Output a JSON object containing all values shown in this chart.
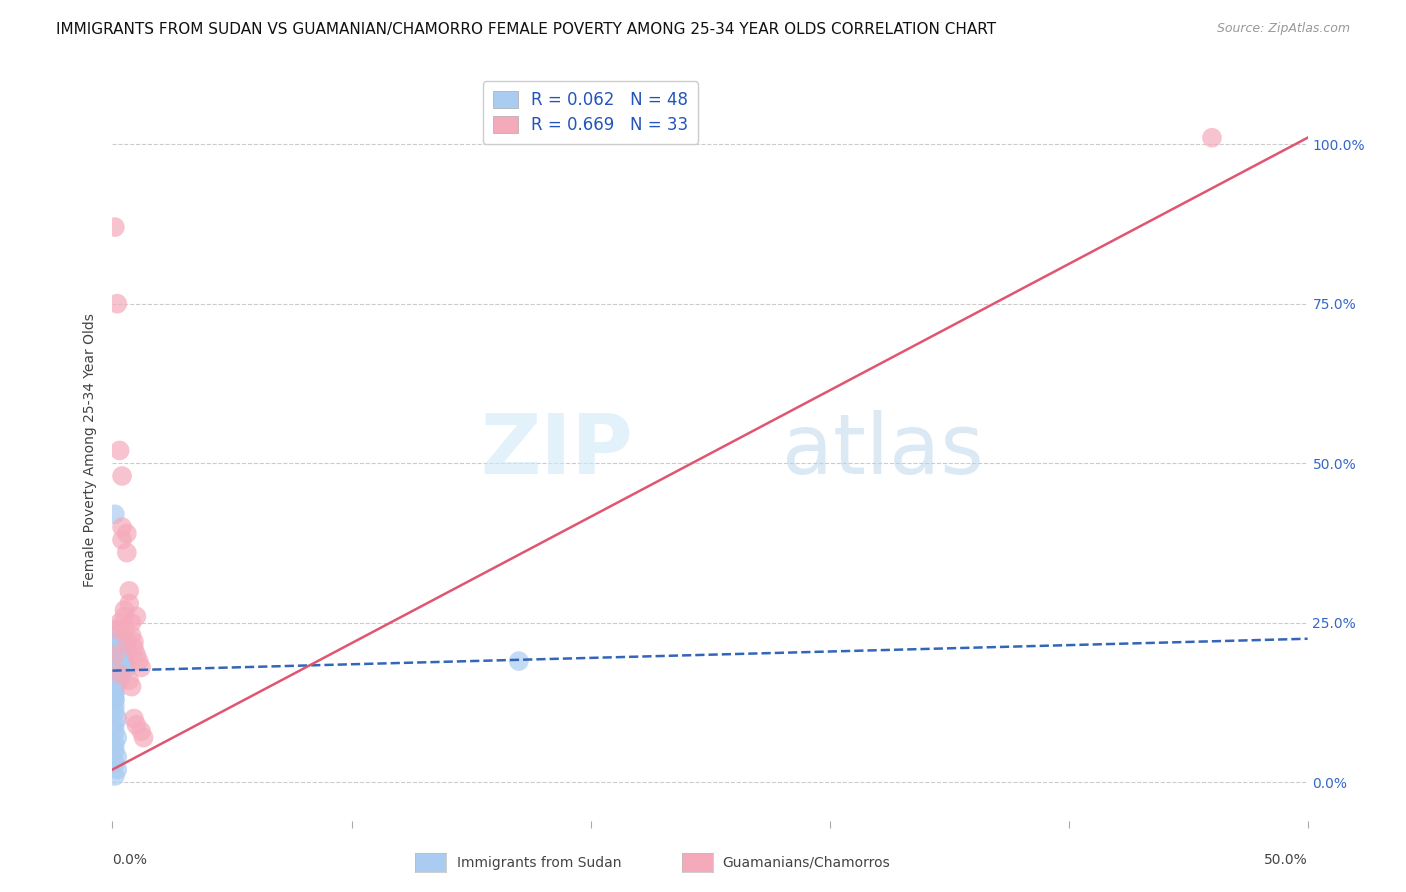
{
  "title": "IMMIGRANTS FROM SUDAN VS GUAMANIAN/CHAMORRO FEMALE POVERTY AMONG 25-34 YEAR OLDS CORRELATION CHART",
  "source": "Source: ZipAtlas.com",
  "ylabel": "Female Poverty Among 25-34 Year Olds",
  "ylabel_right_ticks": [
    "0.0%",
    "25.0%",
    "50.0%",
    "75.0%",
    "100.0%"
  ],
  "ylabel_right_vals": [
    0.0,
    0.25,
    0.5,
    0.75,
    1.0
  ],
  "xmin": 0.0,
  "xmax": 0.5,
  "ymin": -0.06,
  "ymax": 1.1,
  "legend_blue_label": "R = 0.062   N = 48",
  "legend_pink_label": "R = 0.669   N = 33",
  "blue_color": "#aaccf0",
  "pink_color": "#f5aabb",
  "blue_line_color": "#3366bb",
  "pink_line_color": "#e05570",
  "watermark_zip": "ZIP",
  "watermark_atlas": "atlas",
  "grid_color": "#cccccc",
  "title_fontsize": 11,
  "axis_label_fontsize": 10,
  "tick_fontsize": 10,
  "blue_scatter_x": [
    0.001,
    0.001,
    0.002,
    0.002,
    0.003,
    0.003,
    0.004,
    0.004,
    0.005,
    0.006,
    0.001,
    0.001,
    0.002,
    0.002,
    0.003,
    0.003,
    0.004,
    0.005,
    0.001,
    0.001,
    0.001,
    0.001,
    0.002,
    0.002,
    0.003,
    0.003,
    0.001,
    0.001,
    0.002,
    0.001,
    0.001,
    0.002,
    0.001,
    0.001,
    0.002,
    0.001,
    0.001,
    0.002,
    0.001,
    0.001,
    0.001,
    0.002,
    0.001,
    0.002,
    0.001,
    0.17,
    0.001,
    0.001
  ],
  "blue_scatter_y": [
    0.2,
    0.17,
    0.22,
    0.19,
    0.21,
    0.18,
    0.22,
    0.19,
    0.2,
    0.18,
    0.16,
    0.15,
    0.2,
    0.19,
    0.18,
    0.16,
    0.17,
    0.19,
    0.22,
    0.21,
    0.14,
    0.13,
    0.21,
    0.18,
    0.19,
    0.17,
    0.24,
    0.23,
    0.22,
    0.12,
    0.11,
    0.1,
    0.09,
    0.08,
    0.07,
    0.06,
    0.05,
    0.04,
    0.13,
    0.42,
    0.03,
    0.02,
    0.15,
    0.16,
    0.18,
    0.19,
    0.01,
    0.14
  ],
  "pink_scatter_x": [
    0.001,
    0.001,
    0.002,
    0.002,
    0.003,
    0.003,
    0.004,
    0.004,
    0.005,
    0.005,
    0.006,
    0.006,
    0.007,
    0.007,
    0.008,
    0.008,
    0.009,
    0.009,
    0.01,
    0.01,
    0.011,
    0.012,
    0.003,
    0.004,
    0.005,
    0.006,
    0.007,
    0.008,
    0.009,
    0.01,
    0.012,
    0.013,
    0.46
  ],
  "pink_scatter_y": [
    0.87,
    0.2,
    0.75,
    0.24,
    0.52,
    0.25,
    0.4,
    0.38,
    0.27,
    0.26,
    0.36,
    0.22,
    0.3,
    0.28,
    0.25,
    0.23,
    0.22,
    0.21,
    0.2,
    0.26,
    0.19,
    0.18,
    0.17,
    0.48,
    0.24,
    0.39,
    0.16,
    0.15,
    0.1,
    0.09,
    0.08,
    0.07,
    1.01
  ],
  "blue_line_x0": 0.0,
  "blue_line_y0": 0.175,
  "blue_line_x1": 0.5,
  "blue_line_y1": 0.225,
  "pink_line_x0": 0.0,
  "pink_line_y0": 0.02,
  "pink_line_x1": 0.5,
  "pink_line_y1": 1.01
}
